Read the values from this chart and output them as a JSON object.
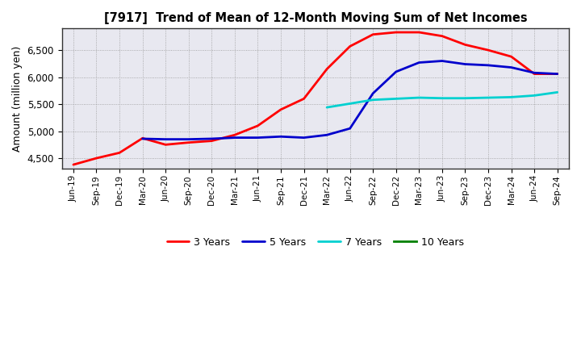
{
  "title": "[7917]  Trend of Mean of 12-Month Moving Sum of Net Incomes",
  "ylabel": "Amount (million yen)",
  "background_color": "#ffffff",
  "plot_bg_color": "#e8e8f0",
  "grid_color": "#999999",
  "ylim": [
    4300,
    6900
  ],
  "yticks": [
    4500,
    5000,
    5500,
    6000,
    6500
  ],
  "x_labels": [
    "Jun-19",
    "Sep-19",
    "Dec-19",
    "Mar-20",
    "Jun-20",
    "Sep-20",
    "Dec-20",
    "Mar-21",
    "Jun-21",
    "Sep-21",
    "Dec-21",
    "Mar-22",
    "Jun-22",
    "Sep-22",
    "Dec-22",
    "Mar-23",
    "Jun-23",
    "Sep-23",
    "Dec-23",
    "Mar-24",
    "Jun-24",
    "Sep-24"
  ],
  "series": [
    {
      "label": "3 Years",
      "color": "#ff0000",
      "data_x": [
        0,
        1,
        2,
        3,
        4,
        5,
        6,
        7,
        8,
        9,
        10,
        11,
        12,
        13,
        14,
        15,
        16,
        17,
        18,
        19,
        20,
        21
      ],
      "data_y": [
        4380,
        4500,
        4600,
        4870,
        4750,
        4790,
        4820,
        4930,
        5100,
        5400,
        5600,
        6150,
        6570,
        6790,
        6830,
        6830,
        6760,
        6600,
        6500,
        6380,
        6060,
        6060
      ]
    },
    {
      "label": "5 Years",
      "color": "#0000cc",
      "data_x": [
        3,
        4,
        5,
        6,
        7,
        8,
        9,
        10,
        11,
        12,
        13,
        14,
        15,
        16,
        17,
        18,
        19,
        20,
        21
      ],
      "data_y": [
        4860,
        4850,
        4850,
        4860,
        4880,
        4880,
        4900,
        4880,
        4930,
        5050,
        5700,
        6100,
        6270,
        6300,
        6240,
        6220,
        6180,
        6080,
        6060
      ]
    },
    {
      "label": "7 Years",
      "color": "#00d0d0",
      "data_x": [
        11,
        12,
        13,
        14,
        15,
        16,
        17,
        18,
        19,
        20,
        21
      ],
      "data_y": [
        5440,
        5510,
        5580,
        5600,
        5620,
        5610,
        5610,
        5620,
        5630,
        5660,
        5720
      ]
    },
    {
      "label": "10 Years",
      "color": "#008000",
      "data_x": [],
      "data_y": []
    }
  ]
}
